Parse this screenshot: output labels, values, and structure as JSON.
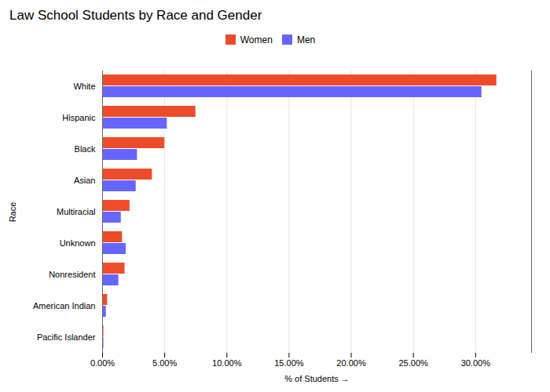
{
  "chart_data": {
    "type": "bar",
    "orientation": "horizontal",
    "title": "Law School Students by Race and Gender",
    "xlabel": "% of Students",
    "ylabel": "Race",
    "categories": [
      "White",
      "Hispanic",
      "Black",
      "Asian",
      "Multiracial",
      "Unknown",
      "Nonresident",
      "American Indian",
      "Pacific Islander"
    ],
    "series": [
      {
        "name": "Women",
        "color": "#EE4B2B",
        "values": [
          0.317,
          0.075,
          0.05,
          0.04,
          0.022,
          0.016,
          0.018,
          0.004,
          0.001
        ]
      },
      {
        "name": "Men",
        "color": "#6666FF",
        "values": [
          0.305,
          0.052,
          0.028,
          0.027,
          0.015,
          0.019,
          0.013,
          0.003,
          0.001
        ]
      }
    ],
    "xlim": [
      0,
      0.345
    ],
    "xticks": [
      {
        "value": 0.0,
        "label": "0.00%"
      },
      {
        "value": 0.05,
        "label": "5.00%"
      },
      {
        "value": 0.1,
        "label": "10.00%"
      },
      {
        "value": 0.15,
        "label": "15.00%"
      },
      {
        "value": 0.2,
        "label": "20.00%"
      },
      {
        "value": 0.25,
        "label": "25.00%"
      },
      {
        "value": 0.3,
        "label": "30.00%"
      }
    ],
    "grid": true,
    "legend": "top"
  }
}
